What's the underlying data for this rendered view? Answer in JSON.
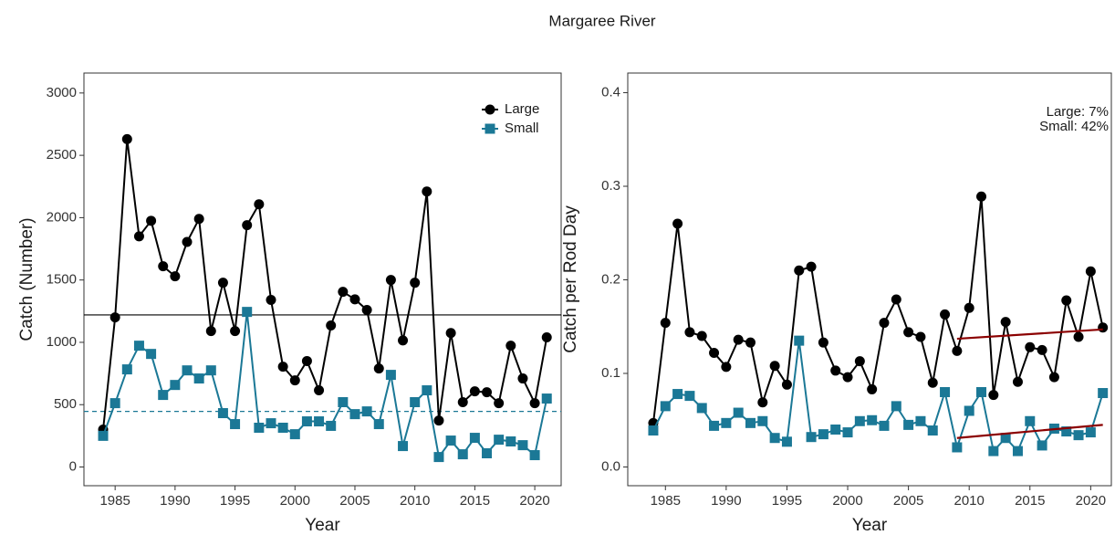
{
  "title": "Margaree River",
  "chart_data": [
    {
      "type": "line",
      "xlabel": "Year",
      "ylabel": "Catch (Number)",
      "x": [
        1984,
        1985,
        1986,
        1987,
        1988,
        1989,
        1990,
        1991,
        1992,
        1993,
        1994,
        1995,
        1996,
        1997,
        1998,
        1999,
        2000,
        2001,
        2002,
        2003,
        2004,
        2005,
        2006,
        2007,
        2008,
        2009,
        2010,
        2011,
        2012,
        2013,
        2014,
        2015,
        2016,
        2017,
        2018,
        2019,
        2020,
        2021
      ],
      "series": [
        {
          "name": "Large",
          "color": "#000000",
          "marker": "circle",
          "values": [
            300,
            1200,
            2630,
            1850,
            1975,
            1610,
            1530,
            1805,
            1990,
            1090,
            1478,
            1090,
            1940,
            2107,
            1340,
            805,
            695,
            850,
            615,
            1135,
            1405,
            1345,
            1260,
            790,
            1500,
            1015,
            1478,
            2210,
            373,
            1075,
            520,
            607,
            600,
            512,
            973,
            710,
            512,
            1040
          ]
        },
        {
          "name": "Small",
          "color": "#1b7896",
          "marker": "square",
          "values": [
            250,
            512,
            783,
            973,
            907,
            578,
            658,
            775,
            710,
            775,
            432,
            344,
            1244,
            315,
            351,
            315,
            263,
            366,
            366,
            330,
            520,
            424,
            446,
            344,
            739,
            168,
            520,
            615,
            80,
            212,
            102,
            234,
            110,
            219,
            205,
            175,
            95,
            549
          ]
        }
      ],
      "hlines": [
        {
          "value": 1220,
          "color": "#000000",
          "dash": "solid"
        },
        {
          "value": 446,
          "color": "#1b7896",
          "dash": "dashed"
        }
      ],
      "xlim": [
        1982.4,
        2022.2
      ],
      "ylim": [
        -150,
        3160
      ],
      "xticks": [
        1985,
        1990,
        1995,
        2000,
        2005,
        2010,
        2015,
        2020
      ],
      "yticks": [
        0,
        500,
        1000,
        1500,
        2000,
        2500,
        3000
      ],
      "legend": "top-right"
    },
    {
      "type": "line",
      "xlabel": "Year",
      "ylabel": "Catch per Rod Day",
      "x": [
        1984,
        1985,
        1986,
        1987,
        1988,
        1989,
        1990,
        1991,
        1992,
        1993,
        1994,
        1995,
        1996,
        1997,
        1998,
        1999,
        2000,
        2001,
        2002,
        2003,
        2004,
        2005,
        2006,
        2007,
        2008,
        2009,
        2010,
        2011,
        2012,
        2013,
        2014,
        2015,
        2016,
        2017,
        2018,
        2019,
        2020,
        2021
      ],
      "series": [
        {
          "color": "#000000",
          "marker": "circle",
          "values": [
            0.047,
            0.154,
            0.26,
            0.144,
            0.14,
            0.122,
            0.107,
            0.136,
            0.133,
            0.069,
            0.108,
            0.088,
            0.21,
            0.214,
            0.133,
            0.103,
            0.096,
            0.113,
            0.083,
            0.154,
            0.179,
            0.144,
            0.139,
            0.09,
            0.163,
            0.124,
            0.17,
            0.289,
            0.077,
            0.155,
            0.091,
            0.128,
            0.125,
            0.096,
            0.178,
            0.139,
            0.209,
            0.149
          ]
        },
        {
          "color": "#1b7896",
          "marker": "square",
          "values": [
            0.039,
            0.065,
            0.078,
            0.076,
            0.063,
            0.044,
            0.047,
            0.058,
            0.047,
            0.049,
            0.031,
            0.027,
            0.135,
            0.032,
            0.035,
            0.04,
            0.037,
            0.049,
            0.05,
            0.044,
            0.065,
            0.045,
            0.049,
            0.039,
            0.08,
            0.021,
            0.06,
            0.08,
            0.017,
            0.031,
            0.017,
            0.049,
            0.023,
            0.041,
            0.038,
            0.034,
            0.037,
            0.079
          ]
        }
      ],
      "trends": [
        {
          "x": [
            2009,
            2021
          ],
          "values": [
            0.137,
            0.147
          ],
          "color": "#8b0000"
        },
        {
          "x": [
            2009,
            2021
          ],
          "values": [
            0.031,
            0.045
          ],
          "color": "#8b0000"
        }
      ],
      "annotations": [
        "Large: 7%",
        "Small: 42%"
      ],
      "xlim": [
        1981.9,
        2021.7
      ],
      "ylim": [
        -0.02,
        0.421
      ],
      "xticks": [
        1985,
        1990,
        1995,
        2000,
        2005,
        2010,
        2015,
        2020
      ],
      "yticks": [
        {
          "value": 0,
          "label": "0.0"
        },
        0.1,
        0.2,
        0.3,
        0.4
      ]
    }
  ]
}
